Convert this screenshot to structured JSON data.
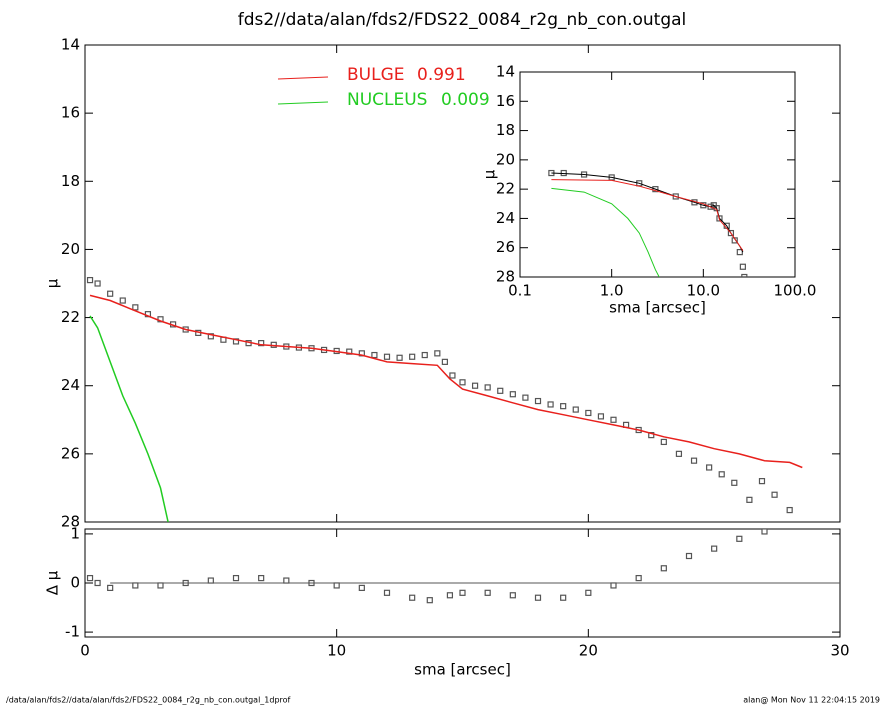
{
  "footer_left": "/data/alan/fds2//data/alan/fds2/FDS22_0084_r2g_nb_con.outgal_1dprof",
  "footer_right": "alan@  Mon Nov 11 22:04:15 2019",
  "chart_data": [
    {
      "type": "scatter",
      "title": "fds2//data/alan/fds2/FDS22_0084_r2g_nb_con.outgal",
      "y_label": "μ",
      "xlim": [
        0,
        30
      ],
      "xticks": [
        0,
        10,
        20,
        30
      ],
      "show_xtick_labels": false,
      "ylim": [
        28,
        14
      ],
      "yticks": [
        14,
        16,
        18,
        20,
        22,
        24,
        26,
        28
      ],
      "series": [
        {
          "style": "markers",
          "color": "#555555",
          "x": [
            0.2,
            0.5,
            1,
            1.5,
            2,
            2.5,
            3,
            3.5,
            4,
            4.5,
            5,
            5.5,
            6,
            6.5,
            7,
            7.5,
            8,
            8.5,
            9,
            9.5,
            10,
            10.5,
            11,
            11.5,
            12,
            12.5,
            13,
            13.5,
            14,
            14.3,
            14.6,
            15,
            15.5,
            16,
            16.5,
            17,
            17.5,
            18,
            18.5,
            19,
            19.5,
            20,
            20.5,
            21,
            21.5,
            22,
            22.5,
            23,
            23.6,
            24.2,
            24.8,
            25.3,
            25.8,
            26.4,
            26.9,
            27.4,
            28
          ],
          "values": [
            20.9,
            21.0,
            21.3,
            21.5,
            21.7,
            21.9,
            22.05,
            22.2,
            22.35,
            22.45,
            22.55,
            22.65,
            22.7,
            22.75,
            22.75,
            22.8,
            22.85,
            22.88,
            22.9,
            22.95,
            22.98,
            23.0,
            23.05,
            23.1,
            23.15,
            23.18,
            23.15,
            23.1,
            23.05,
            23.3,
            23.7,
            23.9,
            24.0,
            24.05,
            24.15,
            24.25,
            24.35,
            24.45,
            24.55,
            24.6,
            24.7,
            24.8,
            24.9,
            25.0,
            25.15,
            25.3,
            25.45,
            25.65,
            26.0,
            26.2,
            26.4,
            26.6,
            26.85,
            27.35,
            26.8,
            27.2,
            27.65
          ]
        },
        {
          "style": "line",
          "name": "BULGE",
          "fraction": 0.991,
          "color": "#e8201c",
          "x": [
            0.2,
            1,
            2,
            3,
            4,
            5,
            6,
            7,
            8,
            9,
            10,
            11,
            12,
            13,
            14,
            14.5,
            15,
            16,
            17,
            18,
            19,
            20,
            21,
            22,
            23,
            24,
            25,
            26,
            27,
            28,
            28.5
          ],
          "values": [
            21.35,
            21.5,
            21.8,
            22.1,
            22.35,
            22.5,
            22.65,
            22.8,
            22.85,
            22.9,
            23.0,
            23.1,
            23.3,
            23.35,
            23.4,
            23.8,
            24.1,
            24.3,
            24.5,
            24.7,
            24.85,
            25.0,
            25.15,
            25.3,
            25.5,
            25.65,
            25.85,
            26.0,
            26.2,
            26.25,
            26.4
          ]
        },
        {
          "style": "line",
          "name": "NUCLEUS",
          "fraction": 0.009,
          "color": "#22cc22",
          "x": [
            0.2,
            0.5,
            1,
            1.5,
            2,
            2.5,
            3,
            3.3
          ],
          "values": [
            21.95,
            22.3,
            23.3,
            24.3,
            25.1,
            26.0,
            27.0,
            28.0
          ]
        }
      ]
    },
    {
      "type": "scatter",
      "x_label": "sma [arcsec]",
      "y_label": "Δ μ",
      "xlim": [
        0,
        30
      ],
      "xticks": [
        0,
        10,
        20,
        30
      ],
      "ylim": [
        -1.1,
        1.1
      ],
      "yticks": [
        -1,
        0,
        1
      ],
      "reference_line": {
        "x": [
          1,
          30
        ],
        "y": 0
      },
      "series": [
        {
          "style": "markers",
          "color": "#555555",
          "x": [
            0.2,
            0.5,
            1,
            2,
            3,
            4,
            5,
            6,
            7,
            8,
            9,
            10,
            11,
            12,
            13,
            13.7,
            14.5,
            15,
            16,
            17,
            18,
            19,
            20,
            21,
            22,
            23,
            24,
            25,
            26,
            27
          ],
          "values": [
            0.1,
            0.0,
            -0.1,
            -0.05,
            -0.05,
            0.0,
            0.05,
            0.1,
            0.1,
            0.05,
            0.0,
            -0.05,
            -0.1,
            -0.2,
            -0.3,
            -0.35,
            -0.25,
            -0.2,
            -0.2,
            -0.25,
            -0.3,
            -0.3,
            -0.2,
            -0.05,
            0.1,
            0.3,
            0.55,
            0.7,
            0.9,
            1.05
          ]
        }
      ]
    },
    {
      "type": "scatter",
      "xscale": "log",
      "x_label": "sma [arcsec]",
      "y_label": "μ",
      "xlim": [
        0.1,
        100
      ],
      "xticks": [
        {
          "value": 0.1,
          "label": "0.1"
        },
        {
          "value": 1,
          "label": "1.0"
        },
        {
          "value": 10,
          "label": "10.0"
        },
        {
          "value": 100,
          "label": "100.0"
        }
      ],
      "ylim": [
        28,
        14
      ],
      "yticks": [
        14,
        16,
        18,
        20,
        22,
        24,
        26,
        28
      ],
      "series": [
        {
          "style": "markers",
          "color": "#555555",
          "x": [
            0.22,
            0.3,
            0.5,
            1,
            2,
            3,
            5,
            8,
            10,
            12,
            13,
            14,
            15,
            18,
            20,
            22,
            25,
            27,
            28
          ],
          "values": [
            20.9,
            20.9,
            21.0,
            21.2,
            21.6,
            22.0,
            22.5,
            22.9,
            23.1,
            23.2,
            23.1,
            23.3,
            24.0,
            24.5,
            25.0,
            25.5,
            26.3,
            27.3,
            28.0
          ]
        },
        {
          "style": "line",
          "color": "#000000",
          "x": [
            0.22,
            0.5,
            1,
            2,
            3,
            5,
            8,
            10,
            12,
            13,
            14,
            15,
            18,
            20,
            22,
            25,
            27
          ],
          "values": [
            20.9,
            21.0,
            21.2,
            21.6,
            22.0,
            22.5,
            22.9,
            23.1,
            23.2,
            23.1,
            23.3,
            24.0,
            24.5,
            25.0,
            25.4,
            25.9,
            26.3
          ]
        },
        {
          "style": "line",
          "color": "#e8201c",
          "x": [
            0.22,
            1,
            2,
            3,
            5,
            10,
            14,
            15,
            20,
            27
          ],
          "values": [
            21.35,
            21.4,
            21.8,
            22.1,
            22.5,
            23.0,
            23.4,
            24.1,
            25.0,
            26.2
          ]
        },
        {
          "style": "line",
          "color": "#22cc22",
          "x": [
            0.22,
            0.5,
            1,
            1.5,
            2,
            2.5,
            3,
            3.3
          ],
          "values": [
            21.95,
            22.2,
            23.0,
            24.0,
            25.0,
            26.3,
            27.5,
            28.0
          ]
        }
      ]
    }
  ]
}
